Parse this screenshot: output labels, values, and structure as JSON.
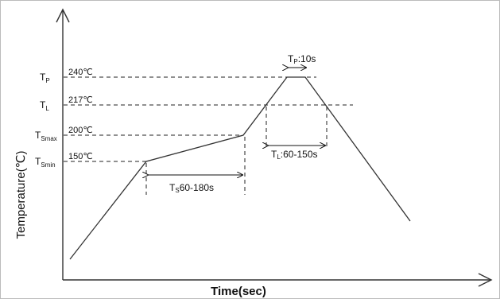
{
  "axes": {
    "x_label": "Time(sec)",
    "y_label": "Temperature(℃)"
  },
  "levels": {
    "tp": {
      "symbol": "T",
      "subscript": "P",
      "temperature": "240℃"
    },
    "tl": {
      "symbol": "T",
      "subscript": "L",
      "temperature": "217℃"
    },
    "tsmax": {
      "symbol": "T",
      "subscript": "Smax",
      "temperature": "200℃"
    },
    "tsmin": {
      "symbol": "T",
      "subscript": "Smin",
      "temperature": "150℃"
    }
  },
  "annotations": {
    "ts": {
      "main": "T",
      "sub": "S",
      "text": "60-180s"
    },
    "tl": {
      "main": "T",
      "sub": "L",
      "text": ":60-150s"
    },
    "tp": {
      "main": "T",
      "sub": "P",
      "text": ":10s"
    }
  },
  "profile": [
    {
      "label": "TSmin",
      "temperature_c": 150
    },
    {
      "label": "TSmax",
      "temperature_c": 200
    },
    {
      "label": "TL",
      "temperature_c": 217
    },
    {
      "label": "TP",
      "temperature_c": 240
    }
  ]
}
